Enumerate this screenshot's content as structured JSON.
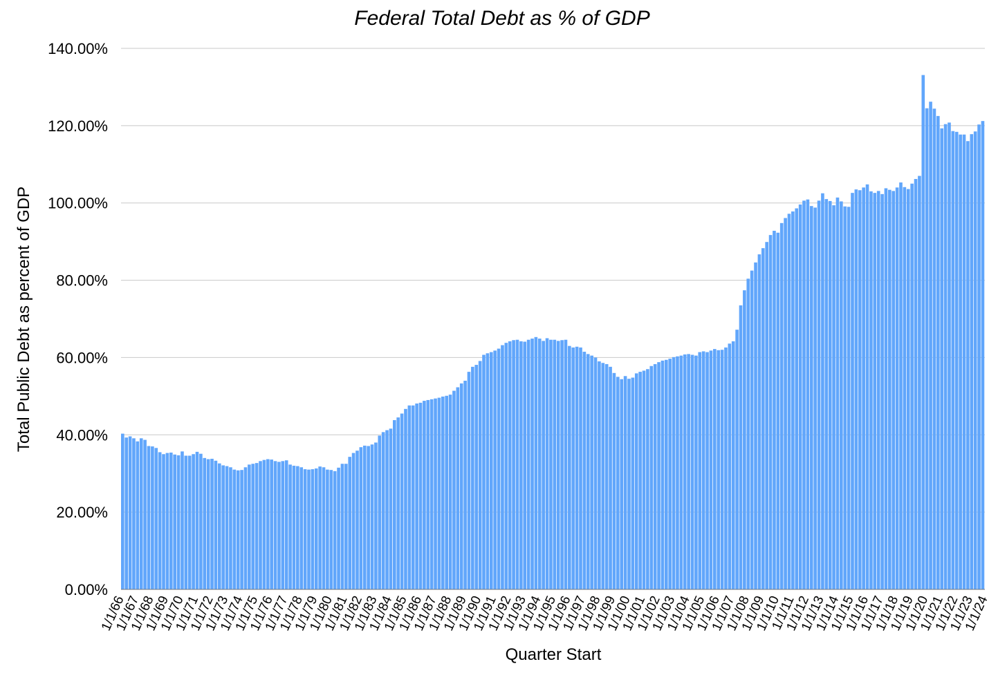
{
  "chart_data": {
    "type": "bar",
    "title": "Federal Total Debt as % of GDP",
    "xlabel": "Quarter Start",
    "ylabel": "Total Public Debt as percent of GDP",
    "ylim": [
      0,
      140
    ],
    "yticks": [
      "0.00%",
      "20.00%",
      "40.00%",
      "60.00%",
      "80.00%",
      "100.00%",
      "120.00%",
      "140.00%"
    ],
    "grid": true,
    "legend": "none",
    "color": "#61a6fb",
    "year_labels": [
      "1/1/66",
      "1/1/67",
      "1/1/68",
      "1/1/69",
      "1/1/70",
      "1/1/71",
      "1/1/72",
      "1/1/73",
      "1/1/74",
      "1/1/75",
      "1/1/76",
      "1/1/77",
      "1/1/78",
      "1/1/79",
      "1/1/80",
      "1/1/81",
      "1/1/82",
      "1/1/83",
      "1/1/84",
      "1/1/85",
      "1/1/86",
      "1/1/87",
      "1/1/88",
      "1/1/89",
      "1/1/90",
      "1/1/91",
      "1/1/92",
      "1/1/93",
      "1/1/94",
      "1/1/95",
      "1/1/96",
      "1/1/97",
      "1/1/98",
      "1/1/99",
      "1/1/00",
      "1/1/01",
      "1/1/02",
      "1/1/03",
      "1/1/04",
      "1/1/05",
      "1/1/06",
      "1/1/07",
      "1/1/08",
      "1/1/09",
      "1/1/10",
      "1/1/11",
      "1/1/12",
      "1/1/13",
      "1/1/14",
      "1/1/15",
      "1/1/16",
      "1/1/17",
      "1/1/18",
      "1/1/19",
      "1/1/20",
      "1/1/21",
      "1/1/22",
      "1/1/23",
      "1/1/24"
    ],
    "values": [
      40.3,
      39.3,
      39.6,
      39.1,
      38.3,
      39.1,
      38.7,
      37.1,
      37.0,
      36.6,
      35.5,
      35.0,
      35.3,
      35.4,
      34.9,
      34.7,
      35.7,
      34.6,
      34.6,
      35.0,
      35.6,
      35.1,
      34.0,
      33.7,
      33.8,
      33.3,
      32.6,
      32.1,
      31.9,
      31.6,
      31.0,
      30.8,
      30.9,
      31.6,
      32.3,
      32.5,
      32.7,
      33.2,
      33.5,
      33.7,
      33.6,
      33.2,
      33.0,
      33.2,
      33.4,
      32.3,
      32.0,
      31.9,
      31.6,
      31.1,
      31.0,
      31.1,
      31.3,
      31.8,
      31.6,
      31.0,
      30.9,
      30.6,
      31.5,
      32.5,
      32.5,
      34.3,
      35.3,
      35.9,
      36.8,
      37.2,
      37.1,
      37.5,
      38.0,
      39.8,
      40.7,
      41.2,
      41.6,
      43.8,
      44.5,
      45.5,
      46.7,
      47.6,
      47.6,
      48.1,
      48.3,
      48.8,
      49.0,
      49.2,
      49.4,
      49.6,
      49.9,
      50.1,
      50.4,
      51.4,
      52.3,
      53.3,
      54.0,
      56.3,
      57.6,
      58.1,
      59.1,
      60.7,
      61.1,
      61.4,
      61.8,
      62.3,
      63.2,
      63.8,
      64.2,
      64.5,
      64.6,
      64.2,
      64.1,
      64.6,
      64.9,
      65.3,
      64.9,
      64.3,
      65.0,
      64.6,
      64.6,
      64.3,
      64.5,
      64.6,
      63.0,
      62.6,
      62.8,
      62.6,
      61.5,
      60.9,
      60.5,
      60.0,
      59.0,
      58.6,
      58.3,
      57.6,
      56.0,
      55.0,
      54.4,
      55.2,
      54.5,
      54.8,
      55.9,
      56.3,
      56.6,
      57.0,
      57.8,
      58.3,
      58.8,
      59.2,
      59.4,
      59.7,
      60.1,
      60.3,
      60.5,
      60.8,
      60.9,
      60.7,
      60.5,
      61.4,
      61.6,
      61.4,
      61.8,
      62.2,
      61.9,
      62.0,
      62.6,
      63.6,
      64.2,
      67.2,
      73.5,
      77.4,
      80.4,
      82.5,
      84.6,
      86.7,
      88.3,
      89.9,
      91.7,
      92.8,
      92.3,
      94.8,
      96.1,
      97.2,
      97.8,
      98.6,
      99.6,
      100.6,
      100.9,
      99.2,
      98.8,
      100.6,
      102.5,
      101.0,
      100.5,
      99.4,
      101.4,
      100.4,
      99.1,
      99.0,
      102.6,
      103.5,
      103.3,
      104.0,
      104.8,
      103.0,
      102.6,
      103.1,
      102.3,
      103.8,
      103.4,
      103.1,
      104.0,
      105.3,
      104.1,
      103.6,
      105.0,
      106.2,
      107.0,
      133.1,
      124.5,
      126.2,
      124.4,
      122.5,
      119.3,
      120.4,
      120.8,
      118.6,
      118.4,
      117.7,
      117.7,
      116.0,
      117.8,
      118.5,
      120.3,
      121.2
    ]
  }
}
